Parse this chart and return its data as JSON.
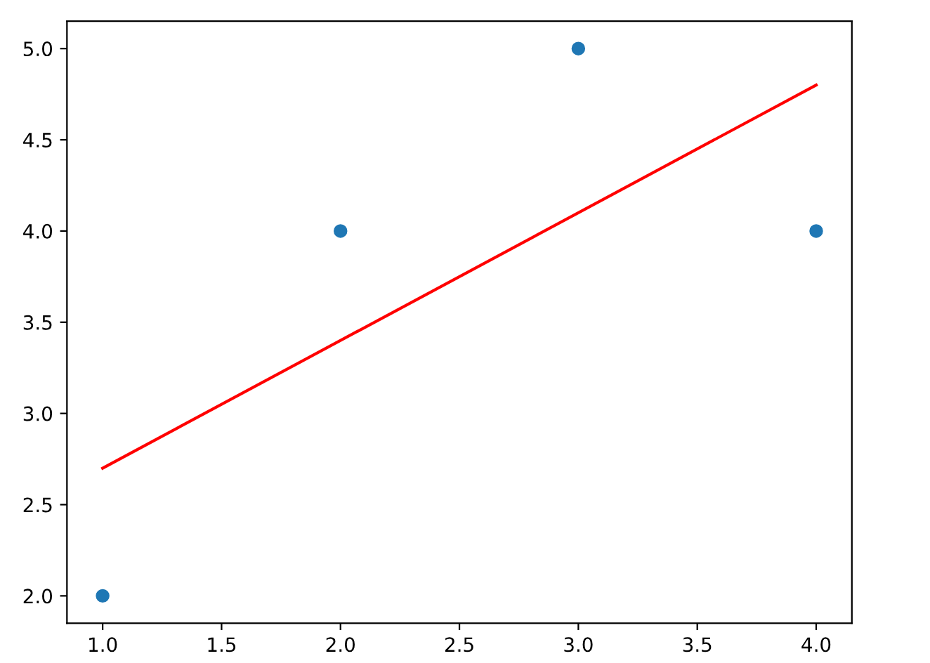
{
  "chart_data": {
    "type": "scatter",
    "series": [
      {
        "color": "#1f77b4",
        "x": [
          1,
          2,
          3,
          4
        ],
        "values": [
          2,
          4,
          5,
          4
        ],
        "marker": "circle"
      },
      {
        "type": "line",
        "color": "#ff0000",
        "x": [
          1,
          4
        ],
        "values": [
          2.7,
          4.8
        ],
        "marker": "none",
        "line_style": "solid"
      }
    ],
    "xlim": [
      0.85,
      4.15
    ],
    "ylim": [
      1.85,
      5.15
    ],
    "xticks": [
      {
        "value": 1,
        "label": "1.0"
      },
      {
        "value": 1.5,
        "label": "1.5"
      },
      {
        "value": 2,
        "label": "2.0"
      },
      {
        "value": 2.5,
        "label": "2.5"
      },
      {
        "value": 3,
        "label": "3.0"
      },
      {
        "value": 3.5,
        "label": "3.5"
      },
      {
        "value": 4,
        "label": "4.0"
      }
    ],
    "yticks": [
      {
        "value": 2,
        "label": "2.0"
      },
      {
        "value": 2.5,
        "label": "2.5"
      },
      {
        "value": 3,
        "label": "3.0"
      },
      {
        "value": 3.5,
        "label": "3.5"
      },
      {
        "value": 4,
        "label": "4.0"
      },
      {
        "value": 4.5,
        "label": "4.5"
      },
      {
        "value": 5,
        "label": "5.0"
      }
    ],
    "grid": false,
    "legend": false
  }
}
